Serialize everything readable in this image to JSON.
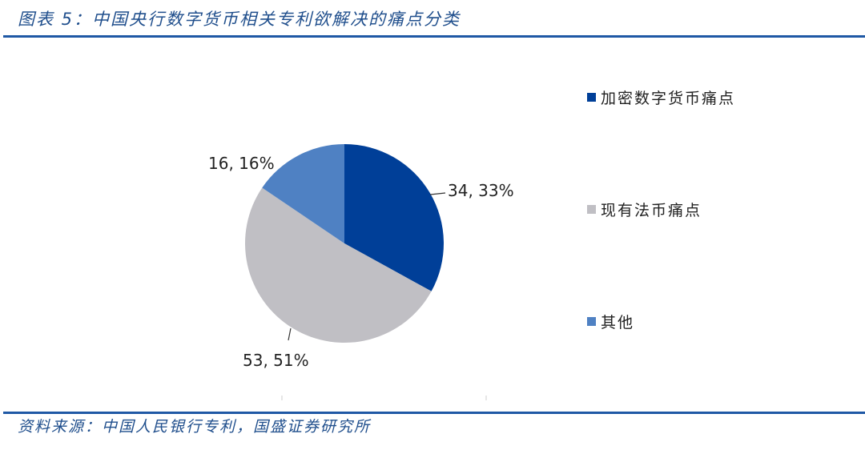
{
  "title": "图表 5：中国央行数字货币相关专利欲解决的痛点分类",
  "source": "资料来源：中国人民银行专利，国盛证券研究所",
  "chart_data": {
    "type": "pie",
    "categories": [
      "加密数字货币痛点",
      "现有法币痛点",
      "其他"
    ],
    "values": [
      34,
      53,
      16
    ],
    "percents": [
      33,
      51,
      16
    ],
    "data_labels": [
      "34, 33%",
      "53, 51%",
      "16, 16%"
    ],
    "colors": [
      "#003f98",
      "#c0bfc4",
      "#4f81c3"
    ],
    "legend_position": "right",
    "start": "top, clockwise"
  }
}
